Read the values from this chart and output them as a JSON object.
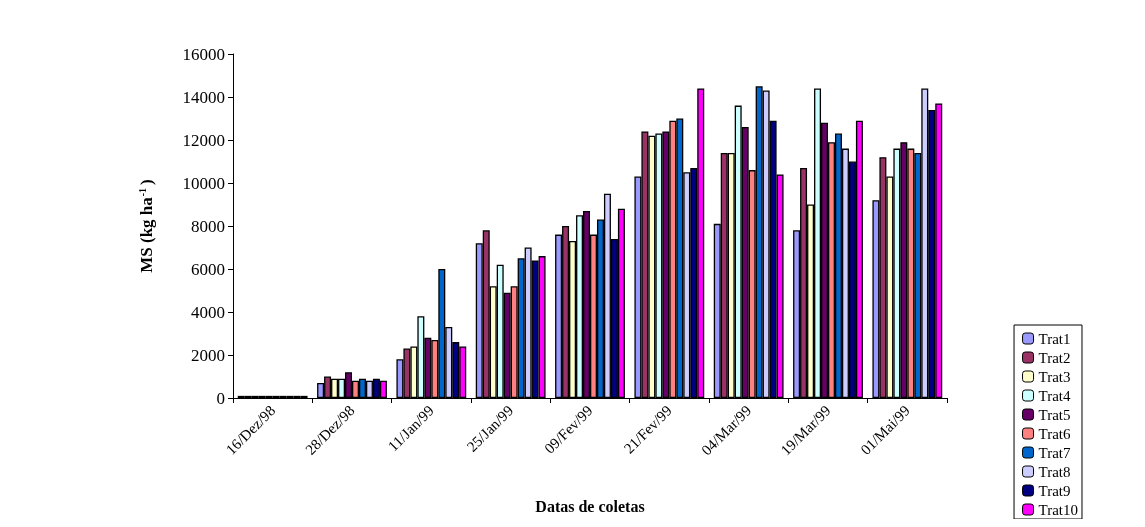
{
  "chart_data": {
    "type": "bar",
    "xlabel": "Datas de coletas",
    "ylabel": "MS (kg ha$^{-1}$)",
    "categories": [
      "16/Dez/98",
      "28/Dez/98",
      "11/Jan/99",
      "25/Jan/99",
      "09/Fev/99",
      "21/Fev/99",
      "04/Mar/99",
      "19/Mar/99",
      "01/Mai/99"
    ],
    "ylim": [
      0,
      16000
    ],
    "yticks": [
      0,
      2000,
      4000,
      6000,
      8000,
      10000,
      12000,
      14000,
      16000
    ],
    "grid": false,
    "legend": "bottom right",
    "series": [
      {
        "name": "Trat1",
        "color": "#9999ff",
        "values": [
          100,
          700,
          1800,
          7200,
          7600,
          10300,
          8100,
          7800,
          9200
        ]
      },
      {
        "name": "Trat2",
        "color": "#993366",
        "values": [
          100,
          1000,
          2300,
          7800,
          8000,
          12400,
          11400,
          10700,
          11200
        ]
      },
      {
        "name": "Trat3",
        "color": "#ffffcc",
        "values": [
          100,
          900,
          2400,
          5200,
          7300,
          12200,
          11400,
          9000,
          10300
        ]
      },
      {
        "name": "Trat4",
        "color": "#ccffff",
        "values": [
          100,
          900,
          3800,
          6200,
          8500,
          12300,
          13600,
          14400,
          11600
        ]
      },
      {
        "name": "Trat5",
        "color": "#660066",
        "values": [
          100,
          1200,
          2800,
          4900,
          8700,
          12400,
          12600,
          12800,
          11900
        ]
      },
      {
        "name": "Trat6",
        "color": "#ff8080",
        "values": [
          100,
          800,
          2700,
          5200,
          7600,
          12900,
          10600,
          11900,
          11600
        ]
      },
      {
        "name": "Trat7",
        "color": "#0066cc",
        "values": [
          100,
          900,
          6000,
          6500,
          8300,
          13000,
          14500,
          12300,
          11400
        ]
      },
      {
        "name": "Trat8",
        "color": "#ccccff",
        "values": [
          100,
          800,
          3300,
          7000,
          9500,
          10500,
          14300,
          11600,
          14400
        ]
      },
      {
        "name": "Trat9",
        "color": "#000080",
        "values": [
          100,
          900,
          2600,
          6400,
          7400,
          10700,
          12900,
          11000,
          13400
        ]
      },
      {
        "name": "Trat10",
        "color": "#ff00ff",
        "values": [
          100,
          800,
          2400,
          6600,
          8800,
          14400,
          10400,
          12900,
          13700
        ]
      }
    ]
  }
}
